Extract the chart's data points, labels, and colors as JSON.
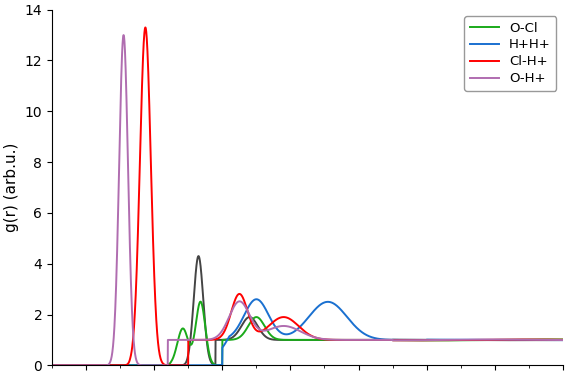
{
  "ylabel": "g(r) (arb.u.)",
  "ylim": [
    0,
    14
  ],
  "xlim": [
    0.5,
    8.0
  ],
  "yticks": [
    0,
    2,
    4,
    6,
    8,
    10,
    12,
    14
  ],
  "line_colors": {
    "Cl-H+": "#ff0000",
    "H+H+": "#1a70d0",
    "O-Cl": "#1aaa1a",
    "O-H+": "#b06db0",
    "black": "#444444"
  },
  "background": "#ffffff"
}
